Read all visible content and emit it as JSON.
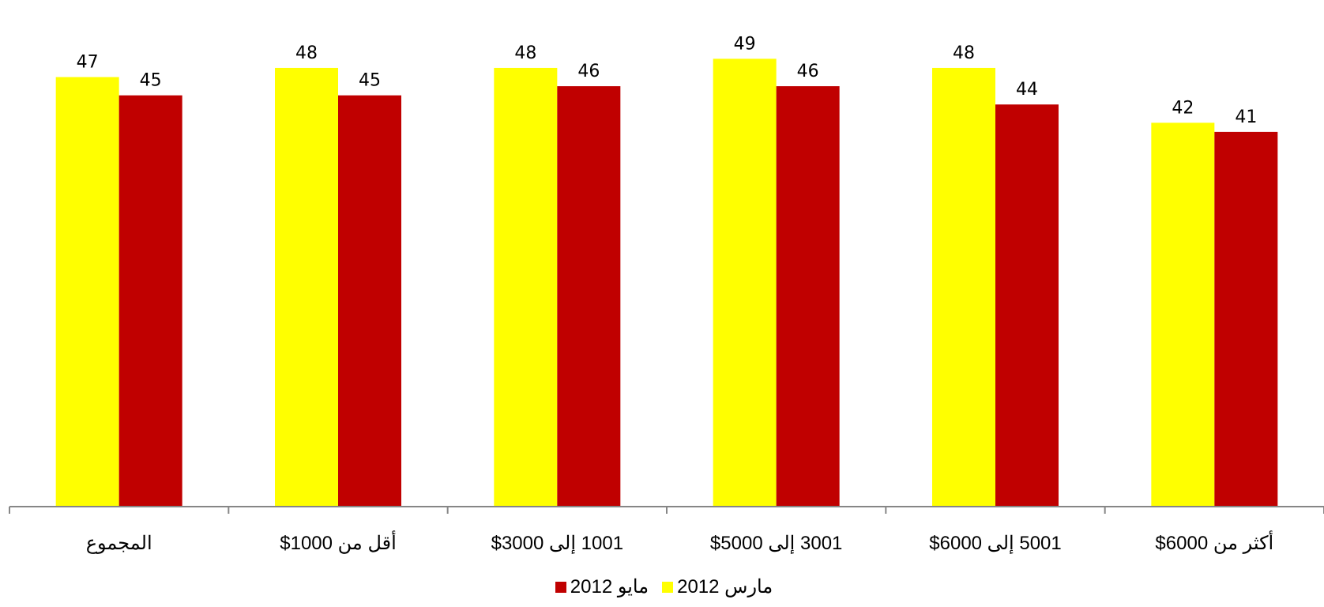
{
  "chart_data": {
    "type": "bar",
    "categories": [
      "المجموع",
      "أقل من 1000$",
      "1001 إلى 3000$",
      "3001 إلى 5000$",
      "5001 إلى 6000$",
      "أكثر من 6000$"
    ],
    "series": [
      {
        "name": "مارس 2012",
        "color": "#ffff00",
        "values": [
          47,
          48,
          48,
          49,
          48,
          42
        ]
      },
      {
        "name": "مايو 2012",
        "color": "#c00000",
        "values": [
          45,
          45,
          46,
          46,
          44,
          41
        ]
      }
    ],
    "title": "",
    "xlabel": "",
    "ylabel": "",
    "ylim": [
      0,
      55
    ],
    "grid": false,
    "legend_position": "bottom"
  }
}
